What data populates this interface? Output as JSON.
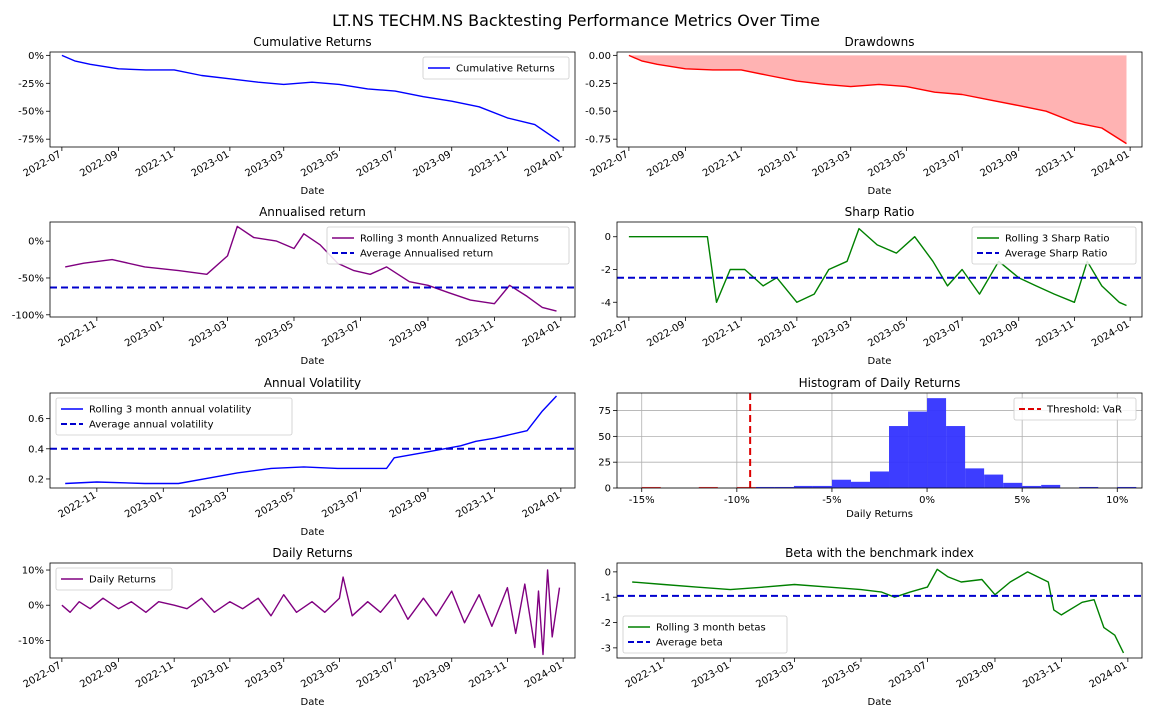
{
  "figure_title": "LT.NS TECHM.NS Backtesting Performance Metrics Over Time",
  "chart_data": [
    {
      "id": "cumulative-returns",
      "type": "line",
      "title": "Cumulative Returns",
      "xlabel": "Date",
      "ylabel": "",
      "x_ticks": [
        "2022-07",
        "2022-09",
        "2022-11",
        "2023-01",
        "2023-03",
        "2023-05",
        "2023-07",
        "2023-09",
        "2023-11",
        "2024-01"
      ],
      "y_ticks": [
        0,
        -25,
        -50,
        -75
      ],
      "y_tick_labels": [
        "0%",
        "-25%",
        "-50%",
        "-75%"
      ],
      "xlim": [
        "2022-06-18",
        "2024-01-14"
      ],
      "ylim": [
        -82,
        3
      ],
      "grid": false,
      "legend": "top-right",
      "series": [
        {
          "name": "Cumulative Returns",
          "color": "#0000ff",
          "x": [
            "2022-07-01",
            "2022-07-15",
            "2022-08-01",
            "2022-09-01",
            "2022-10-01",
            "2022-11-01",
            "2022-12-01",
            "2023-01-01",
            "2023-02-01",
            "2023-03-01",
            "2023-04-01",
            "2023-05-01",
            "2023-06-01",
            "2023-07-01",
            "2023-08-01",
            "2023-09-01",
            "2023-10-01",
            "2023-11-01",
            "2023-12-01",
            "2023-12-28"
          ],
          "values": [
            0,
            -5,
            -8,
            -12,
            -13,
            -13,
            -18,
            -21,
            -24,
            -26,
            -24,
            -26,
            -30,
            -32,
            -37,
            -41,
            -46,
            -56,
            -62,
            -77
          ]
        }
      ]
    },
    {
      "id": "drawdowns",
      "type": "area",
      "title": "Drawdowns",
      "xlabel": "Date",
      "ylabel": "",
      "x_ticks": [
        "2022-07",
        "2022-09",
        "2022-11",
        "2023-01",
        "2023-03",
        "2023-05",
        "2023-07",
        "2023-09",
        "2023-11",
        "2024-01"
      ],
      "y_ticks": [
        0,
        -0.25,
        -0.5,
        -0.75
      ],
      "y_tick_labels": [
        "0.00",
        "-0.25",
        "-0.50",
        "-0.75"
      ],
      "xlim": [
        "2022-06-18",
        "2024-01-14"
      ],
      "ylim": [
        -0.82,
        0.03
      ],
      "grid": false,
      "legend": "none",
      "series": [
        {
          "name": "",
          "color": "#ff0000",
          "fill": "#ffb3b3",
          "x": [
            "2022-07-01",
            "2022-07-15",
            "2022-08-01",
            "2022-09-01",
            "2022-10-01",
            "2022-11-01",
            "2022-12-01",
            "2023-01-01",
            "2023-02-01",
            "2023-03-01",
            "2023-04-01",
            "2023-05-01",
            "2023-06-01",
            "2023-07-01",
            "2023-08-01",
            "2023-09-01",
            "2023-10-01",
            "2023-11-01",
            "2023-12-01",
            "2023-12-28"
          ],
          "values": [
            0,
            -0.05,
            -0.08,
            -0.12,
            -0.13,
            -0.13,
            -0.18,
            -0.23,
            -0.26,
            -0.28,
            -0.26,
            -0.28,
            -0.33,
            -0.35,
            -0.4,
            -0.45,
            -0.5,
            -0.6,
            -0.65,
            -0.79
          ]
        }
      ]
    },
    {
      "id": "annualised-return",
      "type": "line",
      "title": "Annualised return",
      "xlabel": "Date",
      "ylabel": "",
      "x_ticks": [
        "2022-11",
        "2023-01",
        "2023-03",
        "2023-05",
        "2023-07",
        "2023-09",
        "2023-11",
        "2024-01"
      ],
      "y_ticks": [
        0,
        -50,
        -100
      ],
      "y_tick_labels": [
        "0%",
        "-50%",
        "-100%"
      ],
      "xlim": [
        "2022-09-19",
        "2024-01-14"
      ],
      "ylim": [
        -103,
        26
      ],
      "grid": false,
      "legend": "top-right",
      "hline": {
        "name": "Average Annualised return",
        "value": -63,
        "color": "#0000cd"
      },
      "series": [
        {
          "name": "Rolling 3 month Annualized Returns",
          "color": "#800080",
          "x": [
            "2022-10-03",
            "2022-10-20",
            "2022-11-15",
            "2022-12-15",
            "2023-01-15",
            "2023-02-10",
            "2023-03-01",
            "2023-03-10",
            "2023-03-25",
            "2023-04-15",
            "2023-05-01",
            "2023-05-10",
            "2023-05-25",
            "2023-06-10",
            "2023-06-25",
            "2023-07-10",
            "2023-07-25",
            "2023-08-15",
            "2023-09-01",
            "2023-09-20",
            "2023-10-10",
            "2023-11-01",
            "2023-11-15",
            "2023-12-01",
            "2023-12-15",
            "2023-12-28"
          ],
          "values": [
            -35,
            -30,
            -25,
            -35,
            -40,
            -45,
            -20,
            20,
            5,
            0,
            -10,
            10,
            -5,
            -30,
            -40,
            -45,
            -35,
            -55,
            -60,
            -70,
            -80,
            -85,
            -60,
            -75,
            -90,
            -95
          ]
        }
      ]
    },
    {
      "id": "sharp-ratio",
      "type": "line",
      "title": "Sharp Ratio",
      "xlabel": "Date",
      "ylabel": "",
      "x_ticks": [
        "2022-07",
        "2022-09",
        "2022-11",
        "2023-01",
        "2023-03",
        "2023-05",
        "2023-07",
        "2023-09",
        "2023-11",
        "2024-01"
      ],
      "y_ticks": [
        0,
        -2,
        -4
      ],
      "y_tick_labels": [
        "0",
        "-2",
        "-4"
      ],
      "xlim": [
        "2022-06-18",
        "2024-01-14"
      ],
      "ylim": [
        -4.9,
        0.9
      ],
      "grid": false,
      "legend": "top-right",
      "hline": {
        "name": "Average Sharp Ratio",
        "value": -2.5,
        "color": "#0000cd"
      },
      "series": [
        {
          "name": "Rolling 3 Sharp Ratio",
          "color": "#008000",
          "x": [
            "2022-07-01",
            "2022-09-25",
            "2022-10-05",
            "2022-10-20",
            "2022-11-05",
            "2022-11-25",
            "2022-12-10",
            "2023-01-01",
            "2023-01-20",
            "2023-02-05",
            "2023-02-25",
            "2023-03-10",
            "2023-03-30",
            "2023-04-20",
            "2023-05-10",
            "2023-05-30",
            "2023-06-15",
            "2023-07-01",
            "2023-07-20",
            "2023-08-10",
            "2023-09-01",
            "2023-09-20",
            "2023-10-10",
            "2023-11-01",
            "2023-11-15",
            "2023-12-01",
            "2023-12-20",
            "2023-12-28"
          ],
          "values": [
            0,
            0,
            -4,
            -2,
            -2,
            -3,
            -2.5,
            -4,
            -3.5,
            -2,
            -1.5,
            0.5,
            -0.5,
            -1,
            0,
            -1.5,
            -3,
            -2,
            -3.5,
            -1.5,
            -2.5,
            -3,
            -3.5,
            -4,
            -1.5,
            -3,
            -4,
            -4.2
          ]
        }
      ]
    },
    {
      "id": "annual-volatility",
      "type": "line",
      "title": "Annual Volatility",
      "xlabel": "Date",
      "ylabel": "",
      "x_ticks": [
        "2022-11",
        "2023-01",
        "2023-03",
        "2023-05",
        "2023-07",
        "2023-09",
        "2023-11",
        "2024-01"
      ],
      "y_ticks": [
        0.6,
        0.4,
        0.2
      ],
      "y_tick_labels": [
        "0.6",
        "0.4",
        "0.2"
      ],
      "xlim": [
        "2022-09-19",
        "2024-01-14"
      ],
      "ylim": [
        0.14,
        0.77
      ],
      "grid": false,
      "legend": "top-left",
      "hline": {
        "name": "Average annual volatility",
        "value": 0.4,
        "color": "#0000cd"
      },
      "series": [
        {
          "name": "Rolling 3 month annual volatility",
          "color": "#0000ff",
          "x": [
            "2022-10-03",
            "2022-11-01",
            "2022-12-15",
            "2023-01-15",
            "2023-02-15",
            "2023-03-10",
            "2023-04-10",
            "2023-05-10",
            "2023-06-10",
            "2023-07-01",
            "2023-07-25",
            "2023-08-01",
            "2023-09-01",
            "2023-10-01",
            "2023-10-15",
            "2023-11-01",
            "2023-12-01",
            "2023-12-15",
            "2023-12-28"
          ],
          "values": [
            0.17,
            0.18,
            0.17,
            0.17,
            0.21,
            0.24,
            0.27,
            0.28,
            0.27,
            0.27,
            0.27,
            0.34,
            0.38,
            0.42,
            0.45,
            0.47,
            0.52,
            0.65,
            0.75
          ]
        }
      ]
    },
    {
      "id": "histogram-daily-returns",
      "type": "bar",
      "title": "Histogram of Daily Returns",
      "xlabel": "Daily Returns",
      "ylabel": "",
      "x_ticks": [
        -15,
        -10,
        -5,
        0,
        5,
        10
      ],
      "x_tick_labels": [
        "-15%",
        "-10%",
        "-5%",
        "0%",
        "5%",
        "10%"
      ],
      "y_ticks": [
        0,
        25,
        50,
        75
      ],
      "xlim": [
        -16.3,
        11.3
      ],
      "ylim": [
        0,
        92
      ],
      "grid": true,
      "legend": "top-right",
      "vline": {
        "name": "Threshold: VaR",
        "value": -9.3,
        "color": "#dd0000"
      },
      "bin_edges": [
        -15,
        -14,
        -13,
        -12,
        -11,
        -10,
        -9,
        -8,
        -7,
        -6,
        -5,
        -4,
        -3,
        -2,
        -1,
        0,
        1,
        2,
        3,
        4,
        5,
        6,
        7,
        8,
        9,
        10,
        11
      ],
      "counts": [
        1,
        0,
        0,
        1,
        0,
        1,
        1,
        1,
        2,
        2,
        8,
        6,
        16,
        60,
        74,
        87,
        60,
        19,
        13,
        5,
        2,
        3,
        0,
        1,
        0,
        1
      ],
      "bar_colors": [
        "#ff3333",
        "#ff3333",
        "#ff3333",
        "#ff3333",
        "#ff3333",
        "#ff3333",
        "#3333ff",
        "#3333ff",
        "#3333ff",
        "#3333ff",
        "#3333ff",
        "#3333ff",
        "#3333ff",
        "#3333ff",
        "#3333ff",
        "#3333ff",
        "#3333ff",
        "#3333ff",
        "#3333ff",
        "#3333ff",
        "#3333ff",
        "#3333ff",
        "#3333ff",
        "#3333ff",
        "#3333ff",
        "#3333ff"
      ]
    },
    {
      "id": "daily-returns",
      "type": "line",
      "title": "Daily Returns",
      "xlabel": "Date",
      "ylabel": "",
      "x_ticks": [
        "2022-07",
        "2022-09",
        "2022-11",
        "2023-01",
        "2023-03",
        "2023-05",
        "2023-07",
        "2023-09",
        "2023-11",
        "2024-01"
      ],
      "y_ticks": [
        10,
        0,
        -10
      ],
      "y_tick_labels": [
        "10%",
        "0%",
        "-10%"
      ],
      "xlim": [
        "2022-06-18",
        "2024-01-14"
      ],
      "ylim": [
        -15,
        12
      ],
      "grid": false,
      "legend": "top-left",
      "series": [
        {
          "name": "Daily Returns",
          "color": "#800080",
          "x": [
            "2022-07-01",
            "2022-07-10",
            "2022-07-20",
            "2022-08-01",
            "2022-08-15",
            "2022-09-01",
            "2022-09-15",
            "2022-10-01",
            "2022-10-15",
            "2022-11-01",
            "2022-11-15",
            "2022-12-01",
            "2022-12-15",
            "2023-01-01",
            "2023-01-15",
            "2023-02-01",
            "2023-02-15",
            "2023-03-01",
            "2023-03-15",
            "2023-04-01",
            "2023-04-15",
            "2023-05-01",
            "2023-05-05",
            "2023-05-15",
            "2023-06-01",
            "2023-06-15",
            "2023-07-01",
            "2023-07-15",
            "2023-08-01",
            "2023-08-15",
            "2023-09-01",
            "2023-09-15",
            "2023-10-01",
            "2023-10-15",
            "2023-11-01",
            "2023-11-10",
            "2023-11-20",
            "2023-12-01",
            "2023-12-05",
            "2023-12-10",
            "2023-12-15",
            "2023-12-20",
            "2023-12-28"
          ],
          "values": [
            0,
            -2,
            1,
            -1,
            2,
            -1,
            1,
            -2,
            1,
            0,
            -1,
            2,
            -2,
            1,
            -1,
            2,
            -3,
            3,
            -2,
            1,
            -2,
            2,
            8,
            -3,
            1,
            -2,
            3,
            -4,
            2,
            -3,
            4,
            -5,
            3,
            -6,
            5,
            -8,
            6,
            -12,
            4,
            -14,
            10,
            -9,
            5
          ]
        }
      ]
    },
    {
      "id": "beta",
      "type": "line",
      "title": "Beta with the benchmark index",
      "xlabel": "Date",
      "ylabel": "",
      "x_ticks": [
        "2022-11",
        "2023-01",
        "2023-03",
        "2023-05",
        "2023-07",
        "2023-09",
        "2023-11",
        "2024-01"
      ],
      "y_ticks": [
        0,
        -1,
        -2,
        -3
      ],
      "y_tick_labels": [
        "0",
        "-1",
        "-2",
        "-3"
      ],
      "xlim": [
        "2022-09-19",
        "2024-01-14"
      ],
      "ylim": [
        -3.4,
        0.35
      ],
      "grid": false,
      "legend": "bottom-left",
      "hline": {
        "name": "Average beta",
        "value": -0.95,
        "color": "#0000cd"
      },
      "series": [
        {
          "name": "Rolling 3 month betas",
          "color": "#008000",
          "x": [
            "2022-10-03",
            "2022-11-01",
            "2022-12-01",
            "2023-01-01",
            "2023-02-01",
            "2023-03-01",
            "2023-04-01",
            "2023-05-01",
            "2023-05-20",
            "2023-06-01",
            "2023-06-15",
            "2023-07-01",
            "2023-07-10",
            "2023-07-20",
            "2023-08-01",
            "2023-08-20",
            "2023-09-01",
            "2023-09-15",
            "2023-10-01",
            "2023-10-20",
            "2023-10-25",
            "2023-11-01",
            "2023-11-20",
            "2023-12-01",
            "2023-12-10",
            "2023-12-20",
            "2023-12-28"
          ],
          "values": [
            -0.4,
            -0.5,
            -0.6,
            -0.7,
            -0.6,
            -0.5,
            -0.6,
            -0.7,
            -0.8,
            -1.0,
            -0.8,
            -0.6,
            0.1,
            -0.2,
            -0.4,
            -0.3,
            -0.9,
            -0.4,
            0.0,
            -0.4,
            -1.5,
            -1.7,
            -1.2,
            -1.1,
            -2.2,
            -2.5,
            -3.2
          ]
        }
      ]
    }
  ]
}
